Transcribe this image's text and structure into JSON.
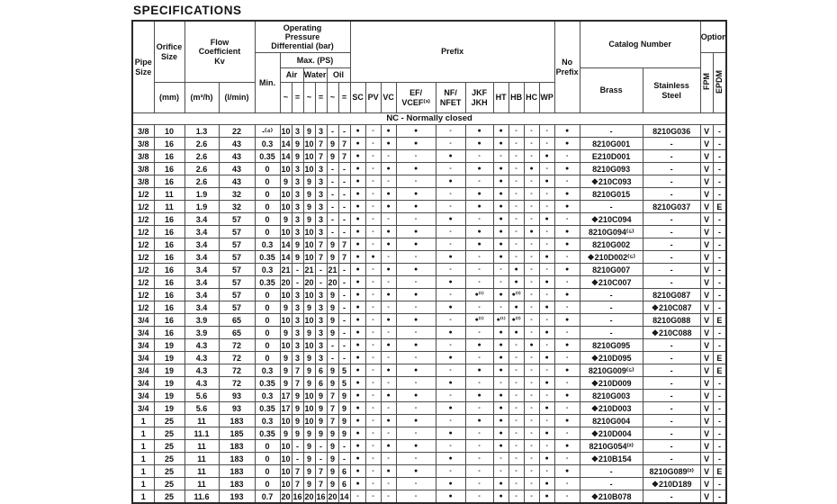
{
  "page": {
    "title": "SPECIFICATIONS"
  },
  "table": {
    "header": {
      "pipe_size": "Pipe\nSize",
      "orifice_size": "Orifice\nSize",
      "orifice_unit": "(mm)",
      "flow_coeff": "Flow\nCoefficient\nKv",
      "flow_unit_m3h": "(m³/h)",
      "flow_unit_lmin": "(l/min)",
      "opd": "Operating\nPressure\nDifferential (bar)",
      "min": "Min.",
      "max_ps": "Max. (PS)",
      "air": "Air",
      "water": "Water",
      "oil": "Oil",
      "ac": "~",
      "dc": "=",
      "prefix": "Prefix",
      "prefix_sc": "SC",
      "prefix_pv": "PV",
      "prefix_vc": "VC",
      "prefix_ef": "EF/\nVCEF⁽³⁾",
      "prefix_nf": "NF/\nNFET",
      "prefix_jkf": "JKF\nJKH",
      "prefix_ht": "HT",
      "prefix_hb": "HB",
      "prefix_hc": "HC",
      "prefix_wp": "WP",
      "no_prefix": "No\nPrefix",
      "catalog_number": "Catalog Number",
      "brass": "Brass",
      "stainless": "Stainless\nSteel",
      "option": "Option",
      "fpm": "FPM",
      "epdm": "EPDM"
    },
    "section_label": "NC - Normally closed",
    "rows": [
      [
        "3/8",
        "10",
        "1.3",
        "22",
        "-⁽⁴⁾",
        "10",
        "3",
        "9",
        "3",
        "-",
        "-",
        "●",
        "-",
        "●",
        "●",
        "-",
        "●",
        "●",
        "-",
        "-",
        "-",
        "●",
        "-",
        "8210G036",
        "V",
        "-"
      ],
      [
        "3/8",
        "16",
        "2.6",
        "43",
        "0.3",
        "14",
        "9",
        "10",
        "7",
        "9",
        "7",
        "●",
        "-",
        "●",
        "●",
        "-",
        "●",
        "●",
        "-",
        "-",
        "-",
        "●",
        "8210G001",
        "-",
        "V",
        "-"
      ],
      [
        "3/8",
        "16",
        "2.6",
        "43",
        "0.35",
        "14",
        "9",
        "10",
        "7",
        "9",
        "7",
        "●",
        "-",
        "-",
        "-",
        "●",
        "-",
        "-",
        "-",
        "-",
        "●",
        "-",
        "E210D001",
        "-",
        "V",
        "-"
      ],
      [
        "3/8",
        "16",
        "2.6",
        "43",
        "0",
        "10",
        "3",
        "10",
        "3",
        "-",
        "-",
        "●",
        "-",
        "●",
        "●",
        "-",
        "●",
        "●",
        "-",
        "●",
        "-",
        "●",
        "8210G093",
        "-",
        "V",
        "-"
      ],
      [
        "3/8",
        "16",
        "2.6",
        "43",
        "0",
        "9",
        "3",
        "9",
        "3",
        "-",
        "-",
        "●",
        "-",
        "-",
        "-",
        "●",
        "-",
        "●",
        "-",
        "-",
        "●",
        "-",
        "❖210C093",
        "-",
        "V",
        "-"
      ],
      [
        "1/2",
        "11",
        "1.9",
        "32",
        "0",
        "10",
        "3",
        "9",
        "3",
        "-",
        "-",
        "●",
        "-",
        "●",
        "●",
        "-",
        "●",
        "●",
        "-",
        "-",
        "-",
        "●",
        "8210G015",
        "-",
        "V",
        "-"
      ],
      [
        "1/2",
        "11",
        "1.9",
        "32",
        "0",
        "10",
        "3",
        "9",
        "3",
        "-",
        "-",
        "●",
        "-",
        "●",
        "●",
        "-",
        "●",
        "●",
        "-",
        "-",
        "-",
        "●",
        "-",
        "8210G037",
        "V",
        "E"
      ],
      [
        "1/2",
        "16",
        "3.4",
        "57",
        "0",
        "9",
        "3",
        "9",
        "3",
        "-",
        "-",
        "●",
        "-",
        "-",
        "-",
        "●",
        "-",
        "●",
        "-",
        "-",
        "●",
        "-",
        "❖210C094",
        "-",
        "V",
        "-"
      ],
      [
        "1/2",
        "16",
        "3.4",
        "57",
        "0",
        "10",
        "3",
        "10",
        "3",
        "-",
        "-",
        "●",
        "-",
        "●",
        "●",
        "-",
        "●",
        "●",
        "-",
        "●",
        "-",
        "●",
        "8210G094⁽⁵⁾",
        "-",
        "V",
        "-"
      ],
      [
        "1/2",
        "16",
        "3.4",
        "57",
        "0.3",
        "14",
        "9",
        "10",
        "7",
        "9",
        "7",
        "●",
        "-",
        "●",
        "●",
        "-",
        "●",
        "●",
        "-",
        "-",
        "-",
        "●",
        "8210G002",
        "-",
        "V",
        "-"
      ],
      [
        "1/2",
        "16",
        "3.4",
        "57",
        "0.35",
        "14",
        "9",
        "10",
        "7",
        "9",
        "7",
        "●",
        "●",
        "-",
        "-",
        "●",
        "-",
        "●",
        "-",
        "-",
        "●",
        "-",
        "❖210D002⁽⁵⁾",
        "-",
        "V",
        "-"
      ],
      [
        "1/2",
        "16",
        "3.4",
        "57",
        "0.3",
        "21",
        "-",
        "21",
        "-",
        "21",
        "-",
        "●",
        "-",
        "●",
        "●",
        "-",
        "-",
        "-",
        "●",
        "-",
        "-",
        "●",
        "8210G007",
        "-",
        "V",
        "-"
      ],
      [
        "1/2",
        "16",
        "3.4",
        "57",
        "0.35",
        "20",
        "-",
        "20",
        "-",
        "20",
        "-",
        "●",
        "-",
        "-",
        "-",
        "●",
        "-",
        "-",
        "●",
        "-",
        "●",
        "-",
        "❖210C007",
        "-",
        "V",
        "-"
      ],
      [
        "1/2",
        "16",
        "3.4",
        "57",
        "0",
        "10",
        "3",
        "10",
        "3",
        "9",
        "-",
        "●",
        "-",
        "●",
        "●",
        "-",
        "●⁽¹⁾",
        "●",
        "●⁽²⁾",
        "-",
        "-",
        "●",
        "-",
        "8210G087",
        "V",
        "-"
      ],
      [
        "1/2",
        "16",
        "3.4",
        "57",
        "0",
        "9",
        "3",
        "9",
        "3",
        "9",
        "-",
        "●",
        "-",
        "-",
        "-",
        "●",
        "-",
        "-",
        "●",
        "-",
        "●",
        "-",
        "-",
        "❖210C087",
        "V",
        "-"
      ],
      [
        "3/4",
        "16",
        "3.9",
        "65",
        "0",
        "10",
        "3",
        "10",
        "3",
        "9",
        "-",
        "●",
        "-",
        "●",
        "●",
        "-",
        "●⁽¹⁾",
        "●⁽¹⁾",
        "●⁽²⁾",
        "-",
        "-",
        "●",
        "-",
        "8210G088",
        "V",
        "E"
      ],
      [
        "3/4",
        "16",
        "3.9",
        "65",
        "0",
        "9",
        "3",
        "9",
        "3",
        "9",
        "-",
        "●",
        "-",
        "-",
        "-",
        "●",
        "-",
        "●",
        "●",
        "-",
        "●",
        "-",
        "-",
        "❖210C088",
        "V",
        "-"
      ],
      [
        "3/4",
        "19",
        "4.3",
        "72",
        "0",
        "10",
        "3",
        "10",
        "3",
        "-",
        "-",
        "●",
        "-",
        "●",
        "●",
        "-",
        "●",
        "●",
        "-",
        "●",
        "-",
        "●",
        "8210G095",
        "-",
        "V",
        "-"
      ],
      [
        "3/4",
        "19",
        "4.3",
        "72",
        "0",
        "9",
        "3",
        "9",
        "3",
        "-",
        "-",
        "●",
        "-",
        "-",
        "-",
        "●",
        "-",
        "●",
        "-",
        "-",
        "●",
        "-",
        "❖210D095",
        "-",
        "V",
        "E"
      ],
      [
        "3/4",
        "19",
        "4.3",
        "72",
        "0.3",
        "9",
        "7",
        "9",
        "6",
        "9",
        "5",
        "●",
        "-",
        "●",
        "●",
        "-",
        "●",
        "●",
        "-",
        "-",
        "-",
        "●",
        "8210G009⁽⁵⁾",
        "-",
        "V",
        "E"
      ],
      [
        "3/4",
        "19",
        "4.3",
        "72",
        "0.35",
        "9",
        "7",
        "9",
        "6",
        "9",
        "5",
        "●",
        "-",
        "-",
        "-",
        "●",
        "-",
        "-",
        "-",
        "-",
        "●",
        "-",
        "❖210D009",
        "-",
        "V",
        "-"
      ],
      [
        "3/4",
        "19",
        "5.6",
        "93",
        "0.3",
        "17",
        "9",
        "10",
        "9",
        "7",
        "9",
        "●",
        "-",
        "●",
        "●",
        "-",
        "●",
        "●",
        "-",
        "-",
        "-",
        "●",
        "8210G003",
        "-",
        "V",
        "-"
      ],
      [
        "3/4",
        "19",
        "5.6",
        "93",
        "0.35",
        "17",
        "9",
        "10",
        "9",
        "7",
        "9",
        "●",
        "-",
        "-",
        "-",
        "●",
        "-",
        "●",
        "-",
        "-",
        "●",
        "-",
        "❖210D003",
        "-",
        "V",
        "-"
      ],
      [
        "1",
        "25",
        "11",
        "183",
        "0.3",
        "10",
        "9",
        "10",
        "9",
        "7",
        "9",
        "●",
        "-",
        "●",
        "●",
        "-",
        "●",
        "●",
        "-",
        "-",
        "-",
        "●",
        "8210G004",
        "-",
        "V",
        "-"
      ],
      [
        "1",
        "25",
        "11.1",
        "185",
        "0.35",
        "9",
        "9",
        "9",
        "9",
        "9",
        "9",
        "●",
        "-",
        "-",
        "-",
        "●",
        "-",
        "●",
        "-",
        "-",
        "●",
        "-",
        "❖210D004",
        "-",
        "V",
        "-"
      ],
      [
        "1",
        "25",
        "11",
        "183",
        "0",
        "10",
        "-",
        "9",
        "-",
        "9",
        "-",
        "●",
        "-",
        "●",
        "●",
        "-",
        "-",
        "●",
        "-",
        "-",
        "-",
        "●",
        "8210G054⁽²⁾",
        "-",
        "V",
        "-"
      ],
      [
        "1",
        "25",
        "11",
        "183",
        "0",
        "10",
        "-",
        "9",
        "-",
        "9",
        "-",
        "●",
        "-",
        "-",
        "-",
        "●",
        "-",
        "-",
        "-",
        "-",
        "●",
        "-",
        "❖210B154",
        "-",
        "V",
        "-"
      ],
      [
        "1",
        "25",
        "11",
        "183",
        "0",
        "10",
        "7",
        "9",
        "7",
        "9",
        "6",
        "●",
        "-",
        "●",
        "●",
        "-",
        "-",
        "-",
        "-",
        "-",
        "-",
        "●",
        "-",
        "8210G089⁽²⁾",
        "V",
        "E"
      ],
      [
        "1",
        "25",
        "11",
        "183",
        "0",
        "10",
        "7",
        "9",
        "7",
        "9",
        "6",
        "●",
        "-",
        "-",
        "-",
        "●",
        "-",
        "●",
        "-",
        "-",
        "●",
        "-",
        "-",
        "❖210D189",
        "V",
        "-"
      ],
      [
        "1",
        "25",
        "11.6",
        "193",
        "0.7",
        "20",
        "16",
        "20",
        "16",
        "20",
        "14",
        "-",
        "-",
        "-",
        "-",
        "●",
        "-",
        "●",
        "-",
        "-",
        "●",
        "-",
        "❖210B078",
        "-",
        "V",
        "-"
      ]
    ]
  }
}
